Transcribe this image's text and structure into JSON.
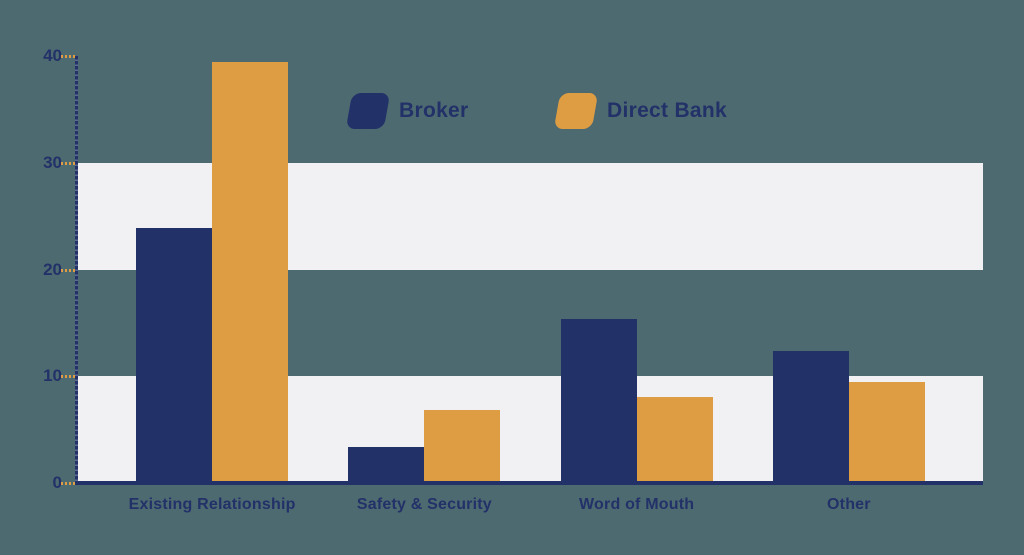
{
  "chart_data": {
    "type": "bar",
    "title": "",
    "xlabel": "",
    "ylabel": "",
    "categories": [
      "Existing Relationship",
      "Safety & Security",
      "Word of Mouth",
      "Other"
    ],
    "series": [
      {
        "name": "Broker",
        "color": "#233169",
        "values": [
          23.9,
          3.4,
          15.4,
          12.4
        ]
      },
      {
        "name": "Direct Bank",
        "color": "#df9d43",
        "values": [
          39.4,
          6.8,
          8.1,
          9.5
        ]
      }
    ],
    "ylim": [
      0,
      40
    ],
    "yticks": [
      0,
      10,
      20,
      30,
      40
    ],
    "bands": [
      [
        0,
        10
      ],
      [
        20,
        30
      ]
    ],
    "legend_position": "top",
    "grid": "alternating-horizontal-bands"
  },
  "colors": {
    "background": "#4d6a70",
    "band": "#f1f1f3",
    "axis": "#233169",
    "axis_minor_dash": "#5b6a8e",
    "tick_dash": "#df9d43",
    "text": "#233169"
  }
}
